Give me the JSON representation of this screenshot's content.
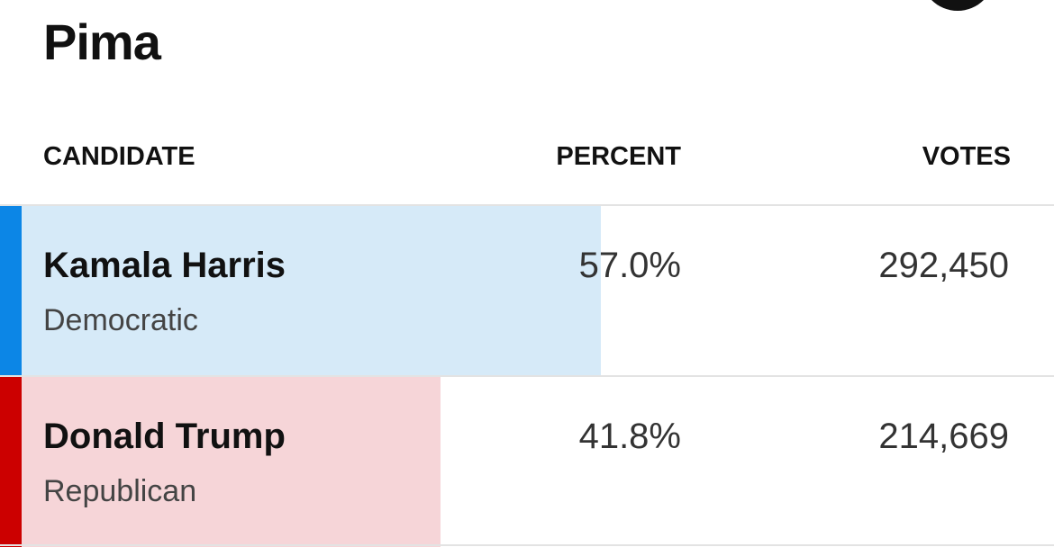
{
  "header": {
    "title": "Pima"
  },
  "table": {
    "columns": [
      "CANDIDATE",
      "PERCENT",
      "VOTES"
    ],
    "rows": [
      {
        "name": "Kamala Harris",
        "party": "Democratic",
        "percent": 57.0,
        "percent_label": "57.0%",
        "votes": "292,450"
      },
      {
        "name": "Donald Trump",
        "party": "Republican",
        "percent": 41.8,
        "percent_label": "41.8%",
        "votes": "214,669"
      }
    ]
  }
}
